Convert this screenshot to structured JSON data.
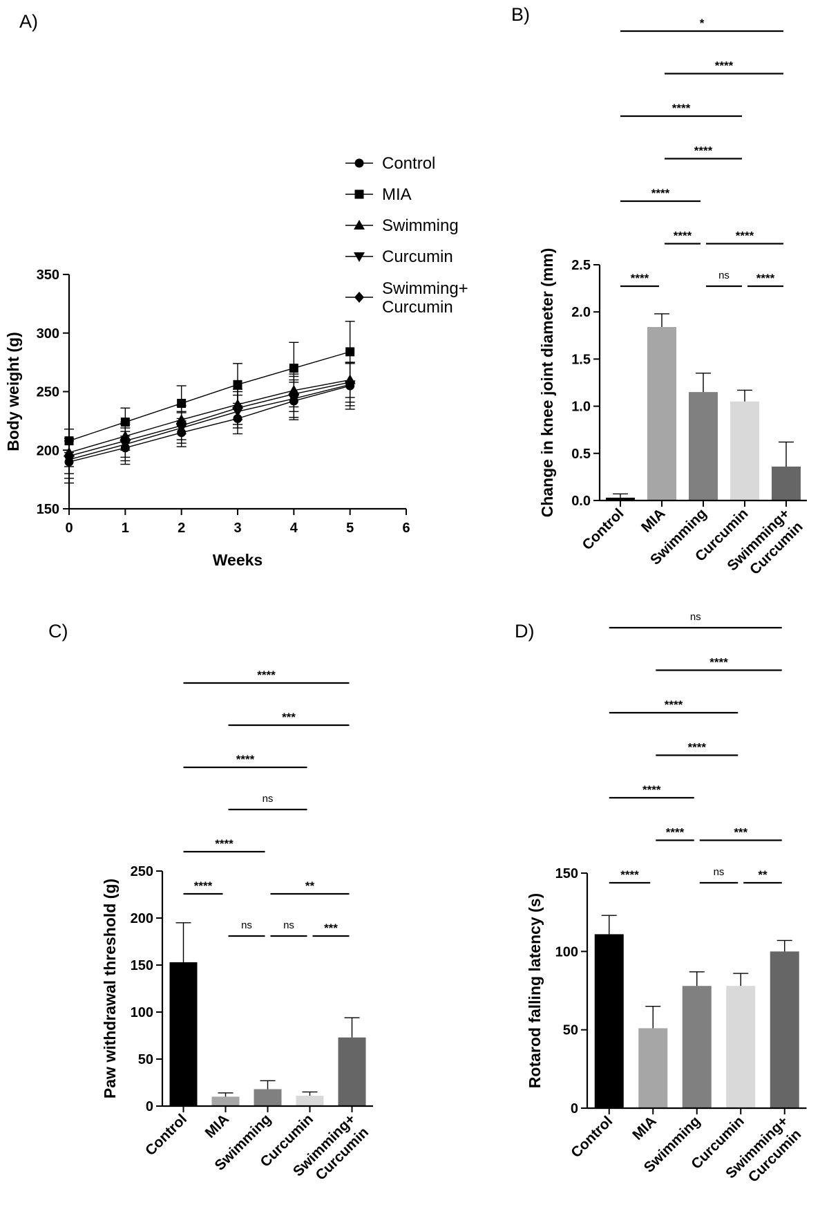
{
  "chart_data": [
    {
      "panel": "A)",
      "type": "line",
      "xlabel": "Weeks",
      "ylabel": "Body weight (g)",
      "xlim": [
        0,
        6
      ],
      "ylim": [
        150,
        350
      ],
      "xticks": [
        "0",
        "1",
        "2",
        "3",
        "4",
        "5",
        "6"
      ],
      "yticks": [
        "150",
        "200",
        "250",
        "300",
        "350"
      ],
      "x": [
        0,
        1,
        2,
        3,
        4,
        5
      ],
      "series": [
        {
          "name": "Control",
          "marker": "circle",
          "values": [
            190,
            202,
            215,
            227,
            242,
            255
          ],
          "errors": [
            18,
            14,
            12,
            13,
            16,
            20
          ]
        },
        {
          "name": "MIA",
          "marker": "square",
          "values": [
            208,
            224,
            240,
            256,
            270,
            284
          ],
          "errors": [
            10,
            12,
            15,
            18,
            22,
            26
          ]
        },
        {
          "name": "Swimming",
          "marker": "triangle-up",
          "values": [
            198,
            212,
            226,
            239,
            251,
            260
          ],
          "errors": [
            12,
            12,
            12,
            13,
            14,
            15
          ]
        },
        {
          "name": "Curcumin",
          "marker": "triangle-down",
          "values": [
            192,
            205,
            219,
            233,
            244,
            256
          ],
          "errors": [
            16,
            14,
            13,
            14,
            16,
            18
          ]
        },
        {
          "name": "Swimming+\nCurcumin",
          "marker": "diamond",
          "values": [
            195,
            208,
            221,
            236,
            248,
            258
          ],
          "errors": [
            15,
            14,
            12,
            14,
            15,
            17
          ]
        }
      ]
    },
    {
      "panel": "B)",
      "type": "bar",
      "ylabel": "Change in knee joint diameter (mm)",
      "ylim": [
        0,
        2.5
      ],
      "yticks": [
        "0.0",
        "0.5",
        "1.0",
        "1.5",
        "2.0",
        "2.5"
      ],
      "categories": [
        "Control",
        "MIA",
        "Swimming",
        "Curcumin",
        "Swimming+\nCurcumin"
      ],
      "values": [
        0.03,
        1.84,
        1.15,
        1.05,
        0.36
      ],
      "errors": [
        0.04,
        0.14,
        0.2,
        0.12,
        0.26
      ],
      "colors": [
        "#000000",
        "#a6a6a6",
        "#808080",
        "#d9d9d9",
        "#666666"
      ],
      "comparisons": [
        {
          "from": 0,
          "to": 4,
          "label": "*"
        },
        {
          "from": 1,
          "to": 4,
          "label": "****"
        },
        {
          "from": 0,
          "to": 3,
          "label": "****"
        },
        {
          "from": 1,
          "to": 3,
          "label": "****"
        },
        {
          "from": 0,
          "to": 2,
          "label": "****"
        },
        {
          "from": 1,
          "to": 2,
          "label": "****"
        },
        {
          "from": 2,
          "to": 4,
          "label": "****"
        },
        {
          "from": 0,
          "to": 1,
          "label": "****"
        },
        {
          "from": 2,
          "to": 3,
          "label": "ns"
        },
        {
          "from": 3,
          "to": 4,
          "label": "****"
        }
      ]
    },
    {
      "panel": "C)",
      "type": "bar",
      "ylabel": "Paw withdrawal threshold (g)",
      "ylim": [
        0,
        250
      ],
      "yticks": [
        "0",
        "50",
        "100",
        "150",
        "200",
        "250"
      ],
      "categories": [
        "Control",
        "MIA",
        "Swimming",
        "Curcumin",
        "Swimming+\nCurcumin"
      ],
      "values": [
        153,
        10,
        18,
        11,
        73
      ],
      "errors": [
        42,
        4,
        9,
        4,
        21
      ],
      "colors": [
        "#000000",
        "#a6a6a6",
        "#808080",
        "#d9d9d9",
        "#666666"
      ],
      "comparisons": [
        {
          "from": 0,
          "to": 4,
          "label": "****"
        },
        {
          "from": 1,
          "to": 4,
          "label": "***"
        },
        {
          "from": 0,
          "to": 3,
          "label": "****"
        },
        {
          "from": 1,
          "to": 3,
          "label": "ns"
        },
        {
          "from": 0,
          "to": 2,
          "label": "****"
        },
        {
          "from": 2,
          "to": 4,
          "label": "**"
        },
        {
          "from": 0,
          "to": 1,
          "label": "****"
        },
        {
          "from": 1,
          "to": 2,
          "label": "ns"
        },
        {
          "from": 2,
          "to": 3,
          "label": "ns"
        },
        {
          "from": 3,
          "to": 4,
          "label": "***"
        }
      ]
    },
    {
      "panel": "D)",
      "type": "bar",
      "ylabel": "Rotarod falling latency (s)",
      "ylim": [
        0,
        150
      ],
      "yticks": [
        "0",
        "50",
        "100",
        "150"
      ],
      "categories": [
        "Control",
        "MIA",
        "Swimming",
        "Curcumin",
        "Swimming+\nCurcumin"
      ],
      "values": [
        111,
        51,
        78,
        78,
        100
      ],
      "errors": [
        12,
        14,
        9,
        8,
        7
      ],
      "colors": [
        "#000000",
        "#a6a6a6",
        "#808080",
        "#d9d9d9",
        "#666666"
      ],
      "comparisons": [
        {
          "from": 0,
          "to": 4,
          "label": "ns"
        },
        {
          "from": 1,
          "to": 4,
          "label": "****"
        },
        {
          "from": 0,
          "to": 3,
          "label": "****"
        },
        {
          "from": 1,
          "to": 3,
          "label": "****"
        },
        {
          "from": 0,
          "to": 2,
          "label": "****"
        },
        {
          "from": 1,
          "to": 2,
          "label": "****"
        },
        {
          "from": 2,
          "to": 4,
          "label": "***"
        },
        {
          "from": 0,
          "to": 1,
          "label": "****"
        },
        {
          "from": 2,
          "to": 3,
          "label": "ns"
        },
        {
          "from": 3,
          "to": 4,
          "label": "**"
        }
      ]
    }
  ]
}
